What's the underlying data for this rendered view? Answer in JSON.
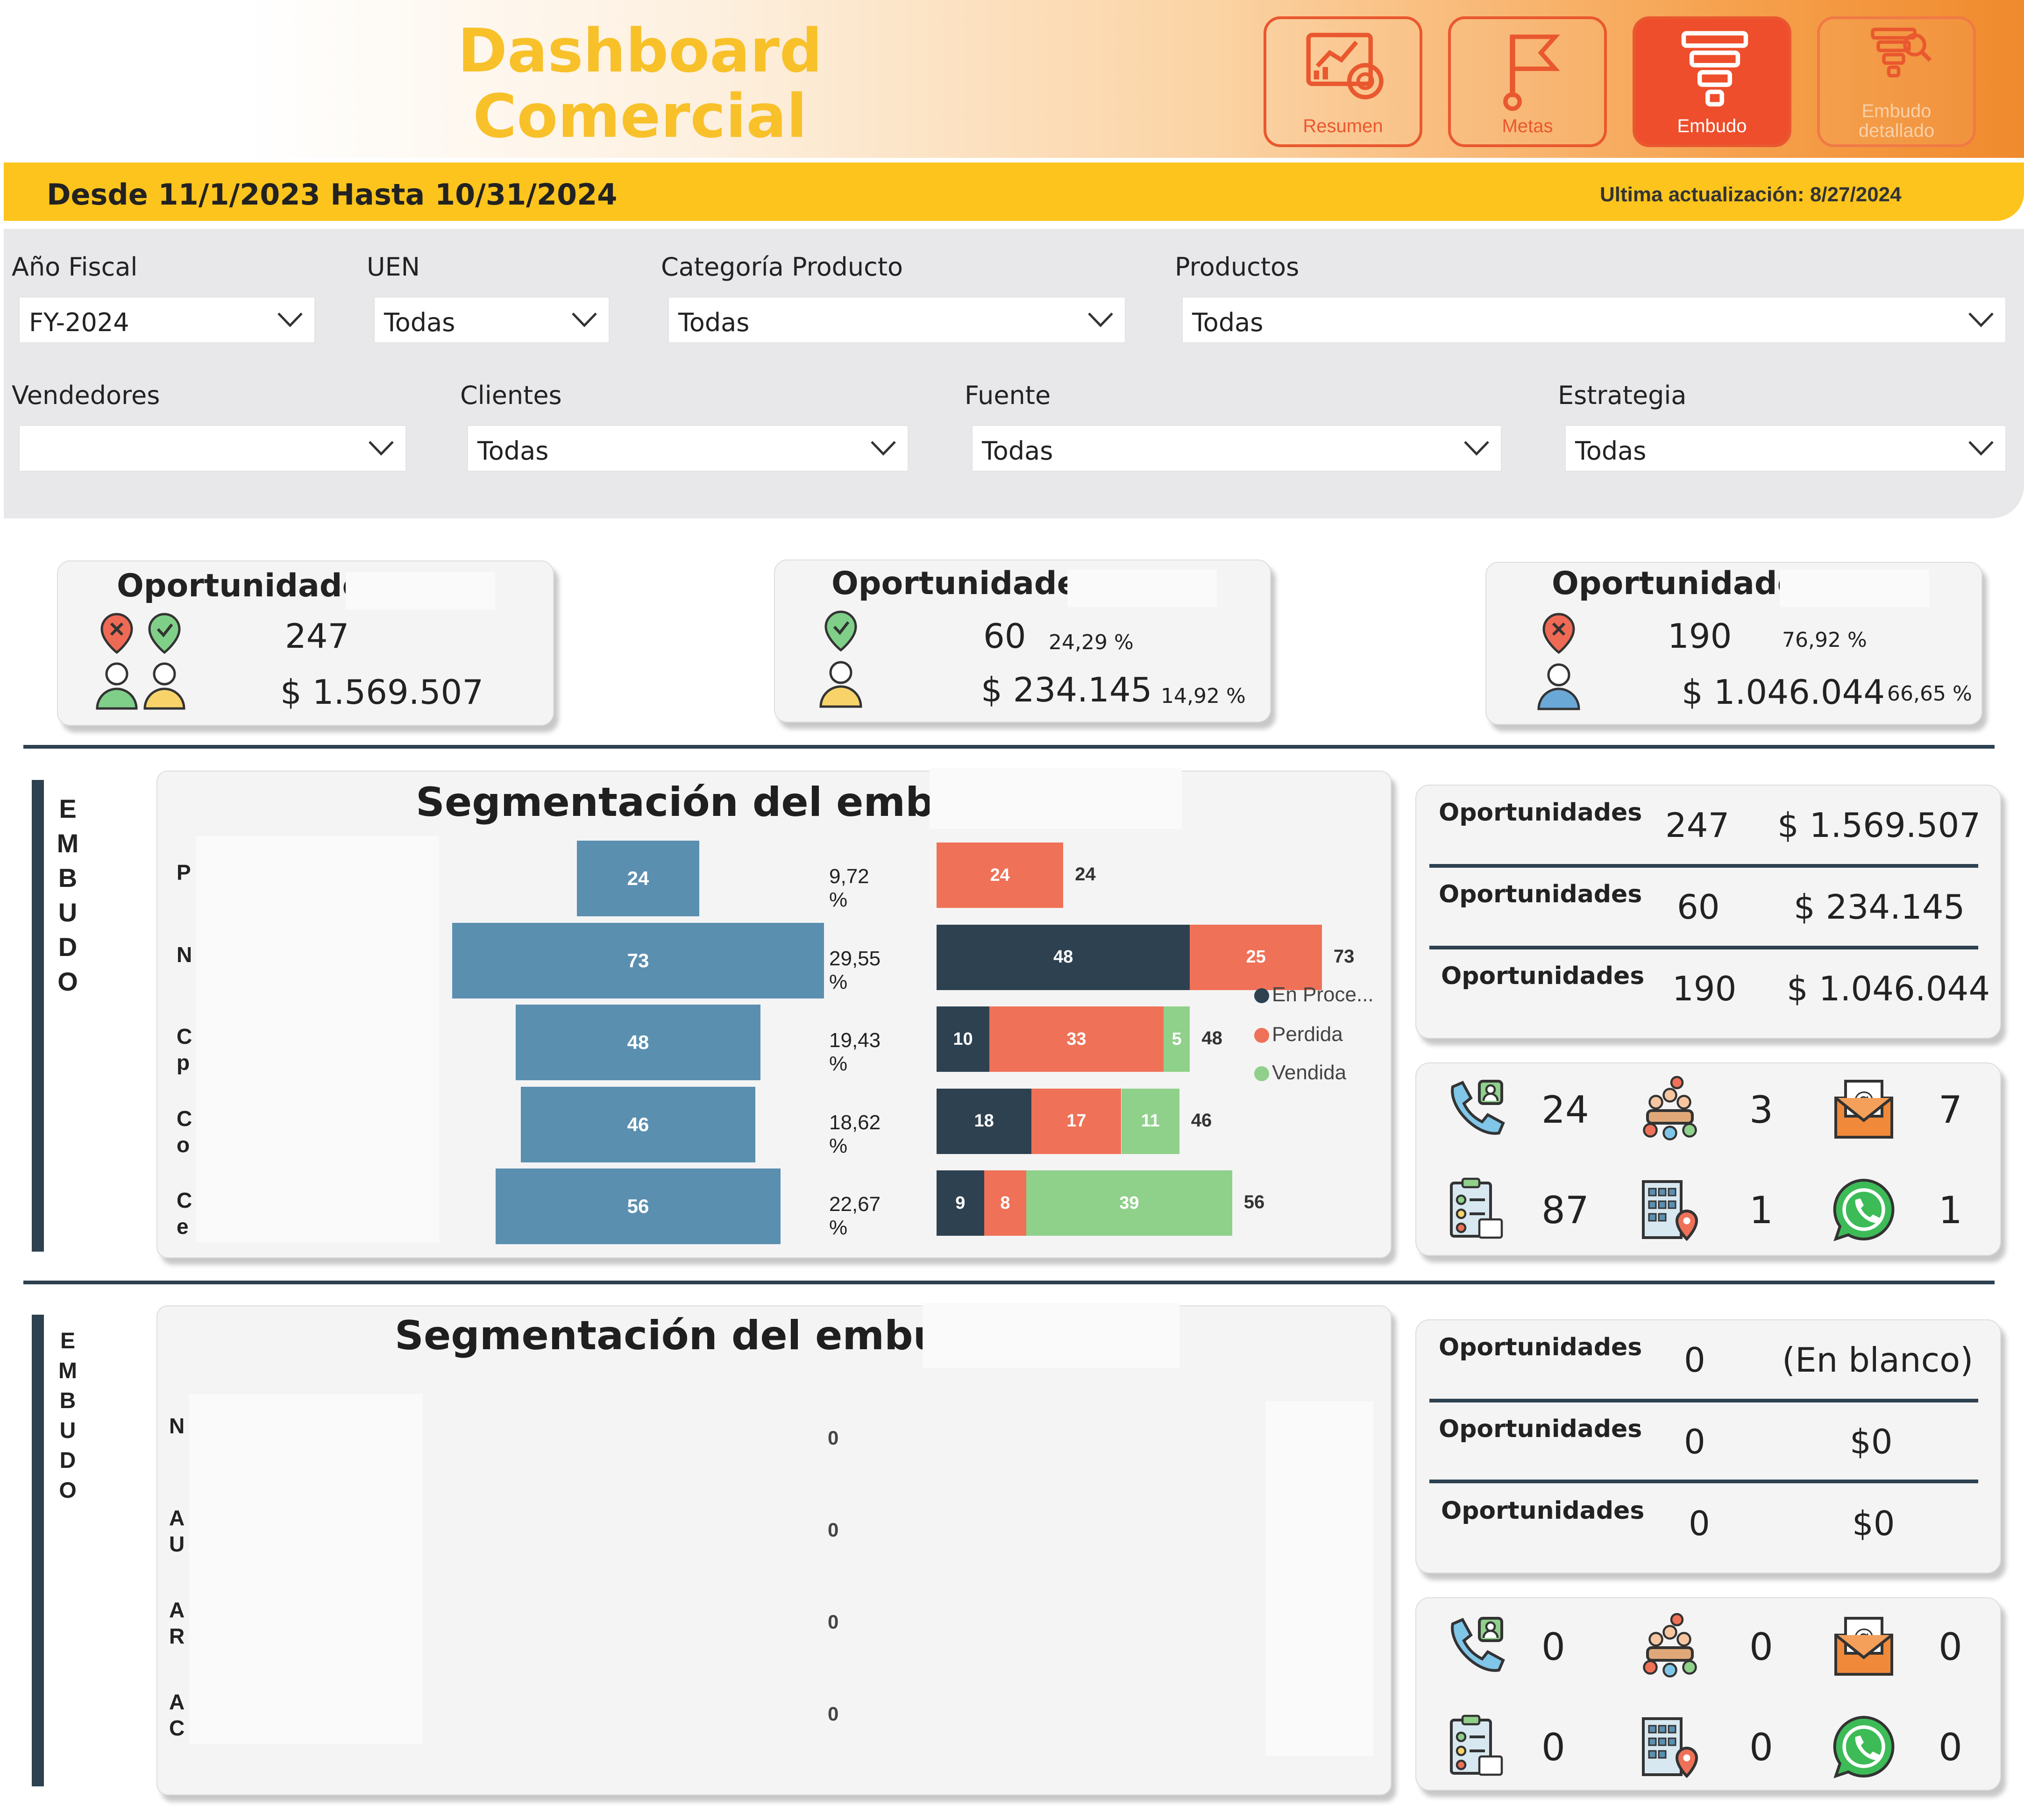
{
  "header": {
    "title_line1": "Dashboard",
    "title_line2": "Comercial",
    "nav": [
      {
        "label": "Resumen",
        "icon": "dashboard-analytics-icon"
      },
      {
        "label": "Metas",
        "icon": "flag-goal-icon"
      },
      {
        "label": "Embudo",
        "icon": "funnel-icon"
      },
      {
        "label": "Embudo detallado",
        "icon": "funnel-search-icon"
      }
    ]
  },
  "datebar": {
    "range": "Desde 11/1/2023 Hasta 10/31/2024",
    "last_update": "Ultima actualización: 8/27/2024"
  },
  "filters": {
    "anio": {
      "label": "Año Fiscal",
      "value": "FY-2024"
    },
    "uen": {
      "label": "UEN",
      "value": "Todas"
    },
    "categoria": {
      "label": "Categoría Producto",
      "value": "Todas"
    },
    "productos": {
      "label": "Productos",
      "value": "Todas"
    },
    "vendedores": {
      "label": "Vendedores",
      "value": ""
    },
    "clientes": {
      "label": "Clientes",
      "value": "Todas"
    },
    "fuente": {
      "label": "Fuente",
      "value": "Todas"
    },
    "estrategia": {
      "label": "Estrategia",
      "value": "Todas"
    }
  },
  "kpis": [
    {
      "title": "Oportunidades",
      "count": "247",
      "amount": "$ 1.569.507",
      "count_pct": "",
      "amount_pct": ""
    },
    {
      "title": "Oportunidades",
      "count": "60",
      "amount": "$ 234.145",
      "count_pct": "24,29 %",
      "amount_pct": "14,92 %"
    },
    {
      "title": "Oportunidades",
      "count": "190",
      "amount": "$ 1.046.044",
      "count_pct": "76,92 %",
      "amount_pct": "66,65 %"
    }
  ],
  "side_label": [
    "E",
    "M",
    "B",
    "U",
    "D",
    "O"
  ],
  "funnel1": {
    "title": "Segmentación del embudo",
    "legend": [
      {
        "label": "En Proce...",
        "color": "#2d4150"
      },
      {
        "label": "Perdida",
        "color": "#ef7157"
      },
      {
        "label": "Vendida",
        "color": "#8fd08a"
      }
    ],
    "rows": [
      {
        "cat": "P",
        "cat2": "",
        "total": "24",
        "pct": "9,72 %",
        "segs": [
          "",
          "24",
          ""
        ],
        "total_label": "24"
      },
      {
        "cat": "N",
        "cat2": "",
        "total": "73",
        "pct": "29,55 %",
        "segs": [
          "48",
          "25",
          ""
        ],
        "total_label": "73"
      },
      {
        "cat": "C",
        "cat2": "p",
        "total": "48",
        "pct": "19,43 %",
        "segs": [
          "10",
          "33",
          "5"
        ],
        "total_label": "48"
      },
      {
        "cat": "C",
        "cat2": "o",
        "total": "46",
        "pct": "18,62 %",
        "segs": [
          "18",
          "17",
          "11"
        ],
        "total_label": "46"
      },
      {
        "cat": "C",
        "cat2": "e",
        "total": "56",
        "pct": "22,67 %",
        "segs": [
          "9",
          "8",
          "39"
        ],
        "total_label": "56"
      }
    ]
  },
  "funnel2": {
    "title": "Segmentación del embudo",
    "rows": [
      {
        "cat": "N",
        "cat2": "",
        "value": "0"
      },
      {
        "cat": "A",
        "cat2": "U",
        "value": "0"
      },
      {
        "cat": "A",
        "cat2": "R",
        "value": "0"
      },
      {
        "cat": "A",
        "cat2": "C",
        "value": "0"
      }
    ]
  },
  "summary1": {
    "rows": [
      {
        "label": "Oportunidades",
        "count": "247",
        "amount": "$ 1.569.507"
      },
      {
        "label": "Oportunidades",
        "count": "60",
        "amount": "$ 234.145"
      },
      {
        "label": "Oportunidades",
        "count": "190",
        "amount": "$ 1.046.044"
      }
    ]
  },
  "sources1": {
    "items": [
      {
        "icon": "phone-call-icon",
        "value": "24"
      },
      {
        "icon": "meeting-group-icon",
        "value": "3"
      },
      {
        "icon": "email-icon",
        "value": "7"
      },
      {
        "icon": "checklist-form-icon",
        "value": "87"
      },
      {
        "icon": "office-location-icon",
        "value": "1"
      },
      {
        "icon": "whatsapp-icon",
        "value": "1"
      }
    ]
  },
  "summary2": {
    "rows": [
      {
        "label": "Oportunidades",
        "count": "0",
        "amount": "(En blanco)"
      },
      {
        "label": "Oportunidades",
        "count": "0",
        "amount": "$0"
      },
      {
        "label": "Oportunidades",
        "count": "0",
        "amount": "$0"
      }
    ]
  },
  "sources2": {
    "items": [
      {
        "icon": "phone-call-icon",
        "value": "0"
      },
      {
        "icon": "meeting-group-icon",
        "value": "0"
      },
      {
        "icon": "email-icon",
        "value": "0"
      },
      {
        "icon": "checklist-form-icon",
        "value": "0"
      },
      {
        "icon": "office-location-icon",
        "value": "0"
      },
      {
        "icon": "whatsapp-icon",
        "value": "0"
      }
    ]
  }
}
